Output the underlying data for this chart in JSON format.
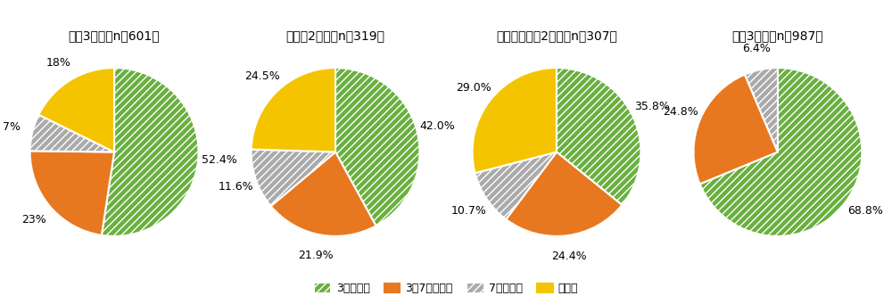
{
  "charts": [
    {
      "title": "小学3年生（n＝601）",
      "values": [
        52.4,
        22.8,
        7.1,
        17.7
      ],
      "labels": [
        "52.4%",
        "23%",
        "7%",
        "18%"
      ],
      "label_offsets": [
        1.22,
        1.22,
        1.22,
        1.22
      ]
    },
    {
      "title": "中学生2年生（n＝319）",
      "values": [
        42.0,
        21.9,
        11.6,
        24.5
      ],
      "labels": [
        "42.0%",
        "21.9%",
        "11.6%",
        "24.5%"
      ],
      "label_offsets": [
        1.22,
        1.22,
        1.22,
        1.22
      ]
    },
    {
      "title": "全日制高校生2年生（n＝307）",
      "values": [
        35.8,
        24.4,
        10.7,
        29.0
      ],
      "labels": [
        "35.8%",
        "24.4%",
        "10.7%",
        "29.0%"
      ],
      "label_offsets": [
        1.22,
        1.22,
        1.22,
        1.22
      ]
    },
    {
      "title": "大学3年生（n＝987）",
      "values": [
        68.8,
        24.8,
        6.4,
        0.0
      ],
      "labels": [
        "68.8%",
        "24.8%",
        "6.4%",
        ""
      ],
      "label_offsets": [
        1.22,
        1.22,
        1.22,
        1.22
      ]
    }
  ],
  "colors": [
    "#6ab040",
    "#e87820",
    "#aaaaaa",
    "#f5c400"
  ],
  "hatches": [
    "////",
    "",
    "////",
    ""
  ],
  "hatch_colors": [
    "white",
    "none",
    "white",
    "none"
  ],
  "legend_labels": [
    "3時間未満",
    "3〜7時間未満",
    "7時間以上",
    "無回答"
  ],
  "background_color": "#ffffff",
  "title_fontsize": 10,
  "label_fontsize": 9,
  "startangle": 90
}
